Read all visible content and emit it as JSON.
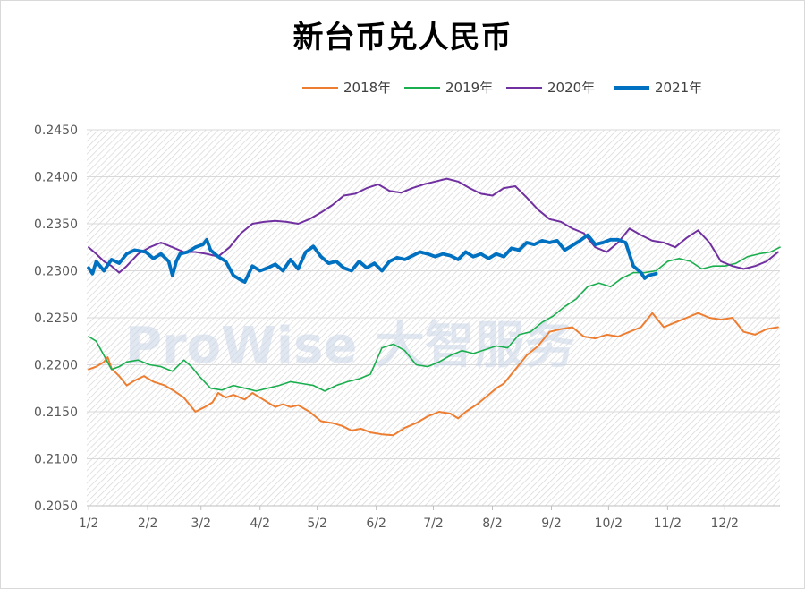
{
  "chart_data": {
    "type": "line",
    "title": "新台币兑人民币",
    "xlabel": "",
    "ylabel": "",
    "x_ticks": [
      "1/2",
      "2/2",
      "3/2",
      "4/2",
      "5/2",
      "6/2",
      "7/2",
      "8/2",
      "9/2",
      "10/2",
      "11/2",
      "12/2"
    ],
    "x_range_days": [
      1,
      365
    ],
    "ylim": [
      0.205,
      0.245
    ],
    "y_ticks": [
      "0.2050",
      "0.2100",
      "0.2150",
      "0.2200",
      "0.2250",
      "0.2300",
      "0.2350",
      "0.2400",
      "0.2450"
    ],
    "grid": "horizontal, hatched plot area",
    "legend_position": "top",
    "watermark": "ProWise 大智服务",
    "series": [
      {
        "name": "2018年",
        "color": "#ed7d31",
        "width": 2,
        "x": [
          2,
          6,
          10,
          12,
          14,
          18,
          22,
          26,
          31,
          36,
          42,
          47,
          52,
          58,
          63,
          67,
          70,
          74,
          78,
          84,
          88,
          92,
          96,
          100,
          104,
          108,
          112,
          118,
          124,
          130,
          135,
          140,
          145,
          150,
          156,
          162,
          168,
          174,
          180,
          186,
          192,
          196,
          200,
          206,
          212,
          216,
          220,
          226,
          232,
          238,
          244,
          250,
          256,
          262,
          268,
          274,
          280,
          286,
          292,
          298,
          304,
          310,
          316,
          322,
          328,
          334,
          340,
          346,
          352,
          358,
          364
        ],
        "y": [
          0.2195,
          0.2198,
          0.2203,
          0.2208,
          0.2196,
          0.2188,
          0.2178,
          0.2183,
          0.2188,
          0.2182,
          0.2178,
          0.2172,
          0.2165,
          0.215,
          0.2155,
          0.216,
          0.217,
          0.2165,
          0.2168,
          0.2163,
          0.217,
          0.2165,
          0.216,
          0.2155,
          0.2158,
          0.2155,
          0.2157,
          0.215,
          0.214,
          0.2138,
          0.2135,
          0.213,
          0.2132,
          0.2128,
          0.2126,
          0.2125,
          0.2133,
          0.2138,
          0.2145,
          0.215,
          0.2148,
          0.2143,
          0.215,
          0.2158,
          0.2168,
          0.2175,
          0.218,
          0.2195,
          0.221,
          0.222,
          0.2235,
          0.2238,
          0.224,
          0.223,
          0.2228,
          0.2232,
          0.223,
          0.2235,
          0.224,
          0.2255,
          0.224,
          0.2245,
          0.225,
          0.2255,
          0.225,
          0.2248,
          0.225,
          0.2235,
          0.2232,
          0.2238,
          0.224
        ]
      },
      {
        "name": "2019年",
        "color": "#1aae4e",
        "width": 1.6,
        "x": [
          2,
          6,
          10,
          14,
          18,
          22,
          28,
          34,
          40,
          46,
          52,
          56,
          60,
          66,
          72,
          78,
          84,
          90,
          96,
          102,
          108,
          114,
          120,
          126,
          132,
          138,
          144,
          150,
          156,
          162,
          168,
          174,
          180,
          186,
          192,
          198,
          204,
          210,
          216,
          222,
          228,
          234,
          240,
          246,
          252,
          258,
          264,
          270,
          276,
          282,
          288,
          294,
          300,
          306,
          312,
          318,
          324,
          330,
          336,
          342,
          348,
          354,
          360,
          365
        ],
        "y": [
          0.223,
          0.2225,
          0.221,
          0.2195,
          0.2198,
          0.2203,
          0.2205,
          0.22,
          0.2198,
          0.2193,
          0.2205,
          0.2198,
          0.2188,
          0.2175,
          0.2173,
          0.2178,
          0.2175,
          0.2172,
          0.2175,
          0.2178,
          0.2182,
          0.218,
          0.2178,
          0.2172,
          0.2178,
          0.2182,
          0.2185,
          0.219,
          0.2218,
          0.2222,
          0.2215,
          0.22,
          0.2198,
          0.2203,
          0.221,
          0.2215,
          0.2212,
          0.2216,
          0.222,
          0.2218,
          0.2232,
          0.2235,
          0.2245,
          0.2252,
          0.2262,
          0.227,
          0.2283,
          0.2287,
          0.2283,
          0.2292,
          0.2298,
          0.2298,
          0.23,
          0.231,
          0.2313,
          0.231,
          0.2302,
          0.2305,
          0.2305,
          0.2308,
          0.2315,
          0.2318,
          0.232,
          0.2325
        ]
      },
      {
        "name": "2020年",
        "color": "#7030a0",
        "width": 2,
        "x": [
          2,
          6,
          10,
          14,
          18,
          22,
          28,
          34,
          40,
          46,
          52,
          58,
          64,
          70,
          76,
          82,
          88,
          94,
          100,
          106,
          112,
          118,
          124,
          130,
          136,
          142,
          148,
          154,
          160,
          166,
          172,
          178,
          184,
          190,
          196,
          202,
          208,
          214,
          220,
          226,
          232,
          238,
          244,
          250,
          256,
          262,
          268,
          274,
          280,
          286,
          292,
          298,
          304,
          310,
          316,
          322,
          328,
          334,
          340,
          346,
          352,
          358,
          364
        ],
        "y": [
          0.2325,
          0.2318,
          0.231,
          0.2305,
          0.2298,
          0.2305,
          0.2318,
          0.2325,
          0.233,
          0.2325,
          0.232,
          0.232,
          0.2318,
          0.2315,
          0.2325,
          0.234,
          0.235,
          0.2352,
          0.2353,
          0.2352,
          0.235,
          0.2355,
          0.2362,
          0.237,
          0.238,
          0.2382,
          0.2388,
          0.2392,
          0.2385,
          0.2383,
          0.2388,
          0.2392,
          0.2395,
          0.2398,
          0.2395,
          0.2388,
          0.2382,
          0.238,
          0.2388,
          0.239,
          0.2378,
          0.2365,
          0.2355,
          0.2352,
          0.2345,
          0.234,
          0.2325,
          0.232,
          0.233,
          0.2345,
          0.2338,
          0.2332,
          0.233,
          0.2325,
          0.2335,
          0.2343,
          0.233,
          0.231,
          0.2305,
          0.2302,
          0.2305,
          0.231,
          0.232
        ]
      },
      {
        "name": "2021年",
        "color": "#0070c0",
        "width": 3.8,
        "x": [
          2,
          4,
          6,
          10,
          14,
          18,
          22,
          26,
          32,
          36,
          40,
          44,
          46,
          48,
          50,
          54,
          58,
          62,
          64,
          66,
          70,
          74,
          78,
          82,
          84,
          88,
          92,
          96,
          100,
          104,
          108,
          112,
          116,
          120,
          124,
          128,
          132,
          136,
          140,
          144,
          148,
          152,
          156,
          160,
          164,
          168,
          172,
          176,
          180,
          184,
          188,
          192,
          196,
          200,
          204,
          208,
          212,
          216,
          220,
          224,
          228,
          232,
          236,
          240,
          244,
          248,
          252,
          256,
          260,
          264,
          268,
          272,
          276,
          280,
          284,
          288,
          292,
          294,
          296,
          300
        ],
        "y": [
          0.2303,
          0.2297,
          0.231,
          0.23,
          0.2312,
          0.2308,
          0.2318,
          0.2322,
          0.232,
          0.2313,
          0.2318,
          0.231,
          0.2295,
          0.231,
          0.2318,
          0.232,
          0.2325,
          0.2328,
          0.2333,
          0.2322,
          0.2315,
          0.231,
          0.2295,
          0.229,
          0.2288,
          0.2305,
          0.23,
          0.2303,
          0.2307,
          0.23,
          0.2312,
          0.2302,
          0.232,
          0.2326,
          0.2315,
          0.2308,
          0.231,
          0.2303,
          0.23,
          0.231,
          0.2303,
          0.2308,
          0.23,
          0.231,
          0.2314,
          0.2312,
          0.2316,
          0.232,
          0.2318,
          0.2315,
          0.2318,
          0.2316,
          0.2312,
          0.232,
          0.2315,
          0.2318,
          0.2313,
          0.2318,
          0.2315,
          0.2324,
          0.2322,
          0.233,
          0.2328,
          0.2332,
          0.233,
          0.2332,
          0.2322,
          0.2327,
          0.2332,
          0.2338,
          0.2328,
          0.233,
          0.2333,
          0.2333,
          0.233,
          0.2305,
          0.2298,
          0.2292,
          0.2295,
          0.2297
        ]
      }
    ]
  }
}
